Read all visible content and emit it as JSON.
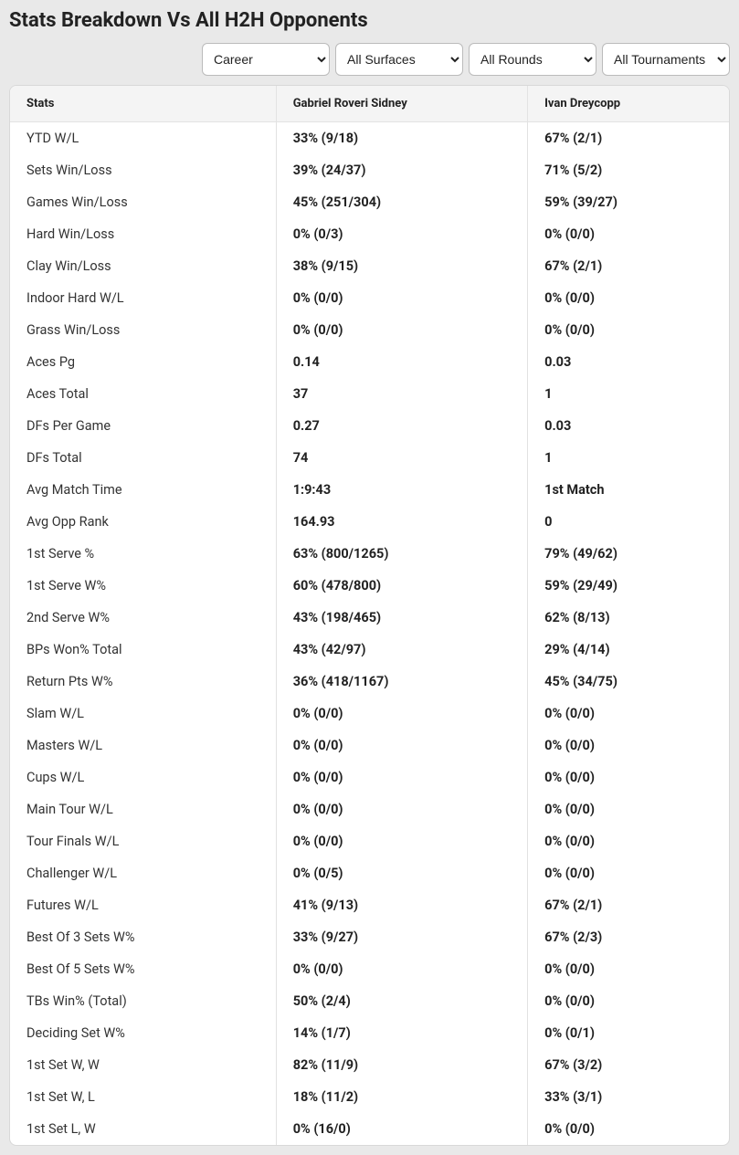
{
  "title": "Stats Breakdown Vs All H2H Opponents",
  "filters": {
    "period": {
      "selected": "Career",
      "options": [
        "Career"
      ]
    },
    "surface": {
      "selected": "All Surfaces",
      "options": [
        "All Surfaces"
      ]
    },
    "round": {
      "selected": "All Rounds",
      "options": [
        "All Rounds"
      ]
    },
    "tournament": {
      "selected": "All Tournaments",
      "options": [
        "All Tournaments"
      ]
    }
  },
  "columns": {
    "stats": "Stats",
    "player1": "Gabriel Roveri Sidney",
    "player2": "Ivan Dreycopp"
  },
  "rows": [
    {
      "label": "YTD W/L",
      "p1": "33% (9/18)",
      "p2": "67% (2/1)"
    },
    {
      "label": "Sets Win/Loss",
      "p1": "39% (24/37)",
      "p2": "71% (5/2)"
    },
    {
      "label": "Games Win/Loss",
      "p1": "45% (251/304)",
      "p2": "59% (39/27)"
    },
    {
      "label": "Hard Win/Loss",
      "p1": "0% (0/3)",
      "p2": "0% (0/0)"
    },
    {
      "label": "Clay Win/Loss",
      "p1": "38% (9/15)",
      "p2": "67% (2/1)"
    },
    {
      "label": "Indoor Hard W/L",
      "p1": "0% (0/0)",
      "p2": "0% (0/0)"
    },
    {
      "label": "Grass Win/Loss",
      "p1": "0% (0/0)",
      "p2": "0% (0/0)"
    },
    {
      "label": "Aces Pg",
      "p1": "0.14",
      "p2": "0.03"
    },
    {
      "label": "Aces Total",
      "p1": "37",
      "p2": "1"
    },
    {
      "label": "DFs Per Game",
      "p1": "0.27",
      "p2": "0.03"
    },
    {
      "label": "DFs Total",
      "p1": "74",
      "p2": "1"
    },
    {
      "label": "Avg Match Time",
      "p1": "1:9:43",
      "p2": "1st Match"
    },
    {
      "label": "Avg Opp Rank",
      "p1": "164.93",
      "p2": "0"
    },
    {
      "label": "1st Serve %",
      "p1": "63% (800/1265)",
      "p2": "79% (49/62)"
    },
    {
      "label": "1st Serve W%",
      "p1": "60% (478/800)",
      "p2": "59% (29/49)"
    },
    {
      "label": "2nd Serve W%",
      "p1": "43% (198/465)",
      "p2": "62% (8/13)"
    },
    {
      "label": "BPs Won% Total",
      "p1": "43% (42/97)",
      "p2": "29% (4/14)"
    },
    {
      "label": "Return Pts W%",
      "p1": "36% (418/1167)",
      "p2": "45% (34/75)"
    },
    {
      "label": "Slam W/L",
      "p1": "0% (0/0)",
      "p2": "0% (0/0)"
    },
    {
      "label": "Masters W/L",
      "p1": "0% (0/0)",
      "p2": "0% (0/0)"
    },
    {
      "label": "Cups W/L",
      "p1": "0% (0/0)",
      "p2": "0% (0/0)"
    },
    {
      "label": "Main Tour W/L",
      "p1": "0% (0/0)",
      "p2": "0% (0/0)"
    },
    {
      "label": "Tour Finals W/L",
      "p1": "0% (0/0)",
      "p2": "0% (0/0)"
    },
    {
      "label": "Challenger W/L",
      "p1": "0% (0/5)",
      "p2": "0% (0/0)"
    },
    {
      "label": "Futures W/L",
      "p1": "41% (9/13)",
      "p2": "67% (2/1)"
    },
    {
      "label": "Best Of 3 Sets W%",
      "p1": "33% (9/27)",
      "p2": "67% (2/3)"
    },
    {
      "label": "Best Of 5 Sets W%",
      "p1": "0% (0/0)",
      "p2": "0% (0/0)"
    },
    {
      "label": "TBs Win% (Total)",
      "p1": "50% (2/4)",
      "p2": "0% (0/0)"
    },
    {
      "label": "Deciding Set W%",
      "p1": "14% (1/7)",
      "p2": "0% (0/1)"
    },
    {
      "label": "1st Set W, W",
      "p1": "82% (11/9)",
      "p2": "67% (3/2)"
    },
    {
      "label": "1st Set W, L",
      "p1": "18% (11/2)",
      "p2": "33% (3/1)"
    },
    {
      "label": "1st Set L, W",
      "p1": "0% (16/0)",
      "p2": "0% (0/0)"
    }
  ]
}
